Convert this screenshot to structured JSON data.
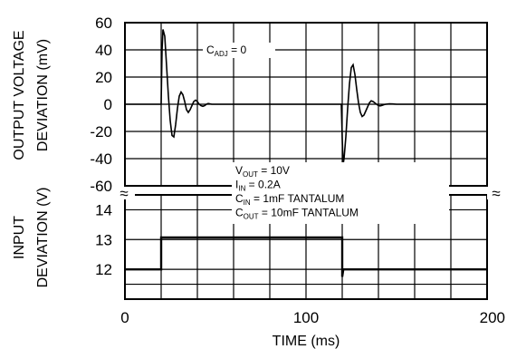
{
  "chart_data": [
    {
      "type": "line",
      "panel": "top",
      "title": "",
      "xlabel": "",
      "ylabel": [
        "OUTPUT VOLTAGE",
        "DEVIATION (mV)"
      ],
      "xlim": [
        0,
        200
      ],
      "ylim": [
        -60,
        60
      ],
      "ytick_labels": [
        "60",
        "40",
        "20",
        "0",
        "-20",
        "-40",
        "-60"
      ],
      "grid": true,
      "series": [
        {
          "x": [
            0,
            20,
            20.5,
            21,
            22,
            23,
            24,
            25,
            26,
            27,
            28,
            29,
            30,
            31,
            32,
            33,
            34,
            35,
            36,
            37,
            38,
            39,
            40,
            41,
            42,
            43,
            44,
            45,
            46,
            48,
            50,
            54,
            60,
            80,
            100,
            119.5,
            120,
            120.5,
            121,
            122,
            123,
            124,
            125,
            126,
            127,
            128,
            129,
            130,
            131,
            132,
            133,
            134,
            135,
            136,
            137,
            138,
            139,
            140,
            141,
            142,
            143,
            144,
            146,
            148,
            150,
            155,
            160,
            180,
            200
          ],
          "y": [
            0,
            0,
            40,
            55,
            50,
            28,
            6,
            -12,
            -23,
            -24,
            -15,
            -3,
            6,
            9,
            7,
            2,
            -4,
            -6,
            -4,
            -1,
            2,
            3,
            2,
            0,
            -1,
            -1.5,
            -1,
            0,
            0.5,
            0,
            0,
            0,
            0,
            0,
            0,
            0,
            -25,
            -44,
            -40,
            -24,
            -3,
            15,
            27,
            29,
            22,
            11,
            1,
            -6,
            -9,
            -8,
            -5,
            -2,
            1,
            2.5,
            2,
            1,
            0,
            -1,
            -1.2,
            -0.8,
            -0.3,
            0,
            0.3,
            0.2,
            0,
            0,
            0,
            0,
            0
          ]
        }
      ],
      "annotation": {
        "text": "C",
        "sub": "ADJ",
        "rest": " = 0",
        "x": 50,
        "y": 40
      }
    },
    {
      "type": "line",
      "panel": "bottom",
      "title": "",
      "xlabel": "TIME (ms)",
      "ylabel": [
        "INPUT",
        "DEVIATION (V)"
      ],
      "xlim": [
        0,
        200
      ],
      "ylim": [
        11,
        14.5
      ],
      "ytick_labels": [
        "14",
        "13",
        "12"
      ],
      "yticks": [
        14,
        13,
        12
      ],
      "xtick_labels": [
        "0",
        "100",
        "200"
      ],
      "xticks": [
        0,
        100,
        200
      ],
      "grid": true,
      "series": [
        {
          "x": [
            0,
            20,
            20,
            120,
            120,
            120.6,
            200
          ],
          "y": [
            12,
            12,
            13.07,
            13.07,
            11.75,
            12,
            12
          ]
        }
      ],
      "annotations": [
        {
          "text": "V",
          "sub": "OUT",
          "rest": " = 10V"
        },
        {
          "text": "I",
          "sub": "IN",
          "rest": " = 0.2A"
        },
        {
          "text": "C",
          "sub": "IN",
          "rest": " = 1mF TANTALUM"
        },
        {
          "text": "C",
          "sub": "OUT",
          "rest": " = 10mF TANTALUM"
        }
      ],
      "axis_break_symbol": "≈"
    }
  ]
}
